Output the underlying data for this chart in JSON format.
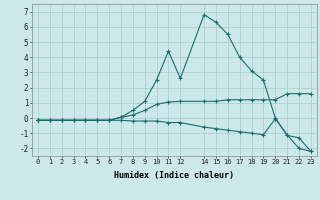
{
  "xlabel": "Humidex (Indice chaleur)",
  "bg_color": "#cce8e8",
  "grid_color": "#aacccc",
  "line_color": "#1a6e6a",
  "xlim": [
    -0.5,
    23.5
  ],
  "ylim": [
    -2.5,
    7.5
  ],
  "xticks": [
    0,
    1,
    2,
    3,
    4,
    5,
    6,
    7,
    8,
    9,
    10,
    11,
    12,
    14,
    15,
    16,
    17,
    18,
    19,
    20,
    21,
    22,
    23
  ],
  "yticks": [
    -2,
    -1,
    0,
    1,
    2,
    3,
    4,
    5,
    6,
    7
  ],
  "line1_x": [
    0,
    1,
    2,
    3,
    4,
    5,
    6,
    7,
    8,
    9,
    10,
    11,
    12,
    14,
    15,
    16,
    17,
    18,
    19,
    20,
    21,
    22,
    23
  ],
  "line1_y": [
    -0.15,
    -0.15,
    -0.15,
    -0.15,
    -0.15,
    -0.15,
    -0.15,
    0.05,
    0.2,
    0.5,
    0.9,
    1.05,
    1.1,
    1.1,
    1.1,
    1.2,
    1.2,
    1.2,
    1.2,
    1.2,
    1.6,
    1.6,
    1.6
  ],
  "line2_x": [
    0,
    1,
    2,
    3,
    4,
    5,
    6,
    7,
    8,
    9,
    10,
    11,
    12,
    14,
    15,
    16,
    17,
    18,
    19,
    20,
    21,
    22,
    23
  ],
  "line2_y": [
    -0.15,
    -0.15,
    -0.15,
    -0.15,
    -0.15,
    -0.15,
    -0.15,
    0.05,
    0.5,
    1.1,
    2.5,
    4.4,
    2.6,
    6.8,
    6.3,
    5.5,
    4.0,
    3.1,
    2.5,
    0.0,
    -1.15,
    -1.3,
    -2.2
  ],
  "line3_x": [
    0,
    1,
    2,
    3,
    4,
    5,
    6,
    7,
    8,
    9,
    10,
    11,
    12,
    14,
    15,
    16,
    17,
    18,
    19,
    20,
    21,
    22,
    23
  ],
  "line3_y": [
    -0.15,
    -0.15,
    -0.15,
    -0.15,
    -0.15,
    -0.15,
    -0.15,
    -0.15,
    -0.2,
    -0.2,
    -0.2,
    -0.3,
    -0.3,
    -0.6,
    -0.7,
    -0.8,
    -0.9,
    -1.0,
    -1.1,
    -0.05,
    -1.1,
    -2.0,
    -2.2
  ]
}
